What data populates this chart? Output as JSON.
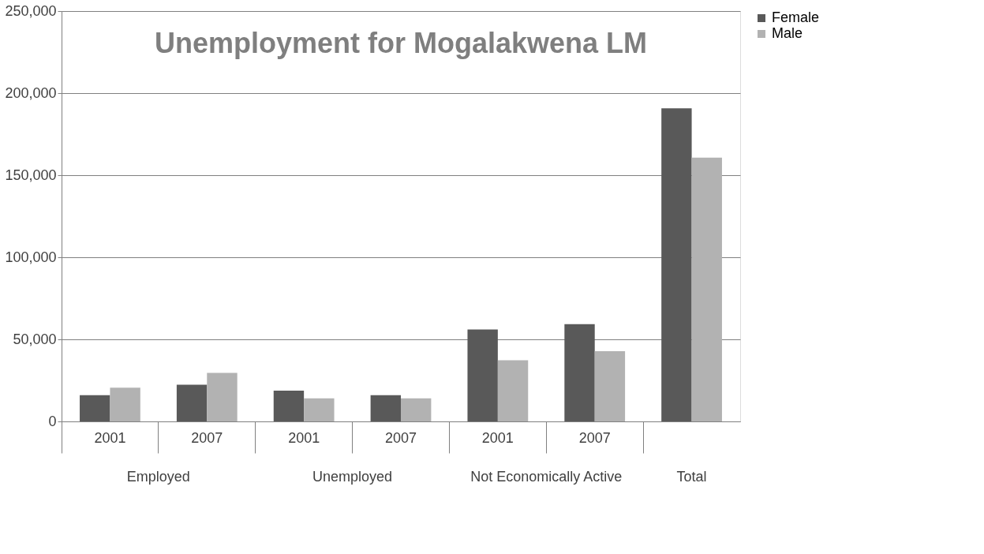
{
  "chart_data": {
    "type": "bar",
    "title": "Unemployment for Mogalakwena LM",
    "categories": [
      "2001",
      "2007",
      "2001",
      "2007",
      "2001",
      "2007",
      null
    ],
    "series": [
      {
        "name": "Female",
        "color": "#595959",
        "values": [
          16000,
          22300,
          18700,
          16000,
          56000,
          59200,
          190800
        ]
      },
      {
        "name": "Male",
        "color": "#b2b2b2",
        "values": [
          20500,
          29600,
          14100,
          14100,
          37300,
          42800,
          160700
        ]
      }
    ],
    "annotations": [
      "Employed",
      "Unemployed",
      "Not Economically Active",
      "Total"
    ],
    "ylim": [
      0,
      250000
    ],
    "yticks": [
      0,
      {
        "value": 50000,
        "label": "50,000"
      },
      {
        "value": 100000,
        "label": "100,000"
      },
      {
        "value": 150000,
        "label": "150,000"
      },
      {
        "value": 200000,
        "label": "200,000"
      },
      {
        "value": 250000,
        "label": "250,000"
      }
    ],
    "grid": "y",
    "legend": "right"
  }
}
